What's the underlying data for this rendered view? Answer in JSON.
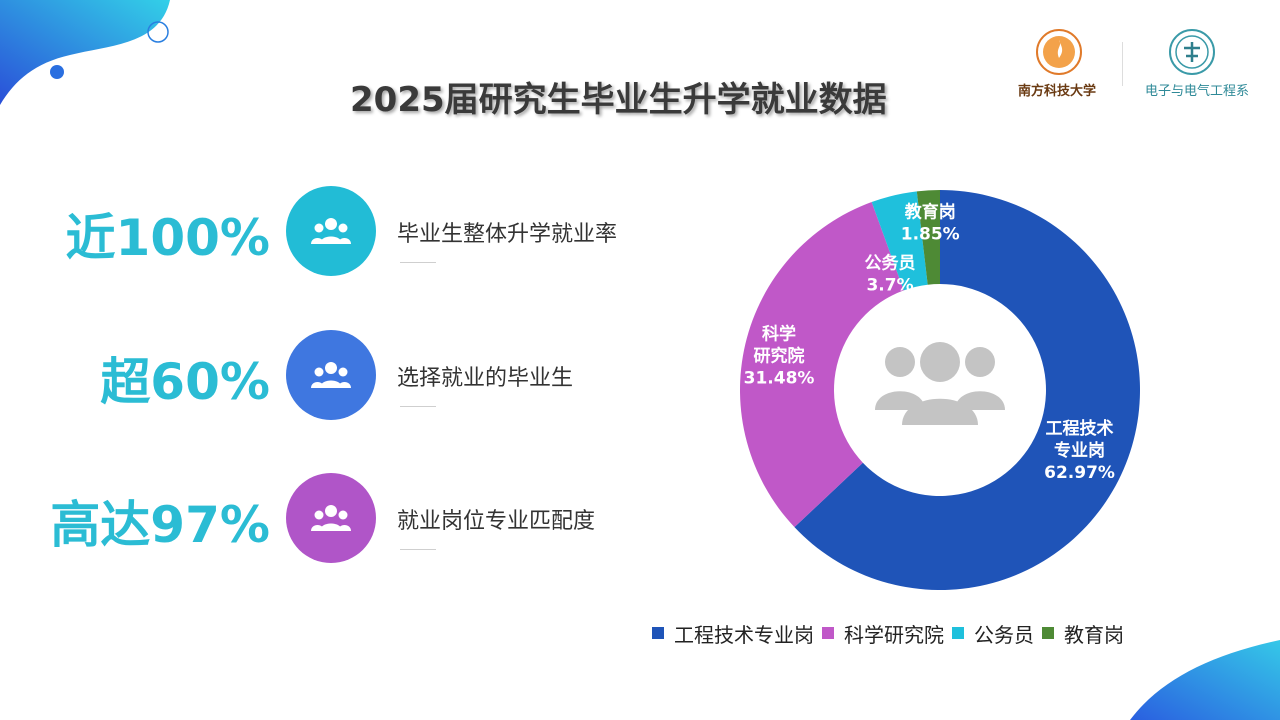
{
  "header": {
    "title": "2025届研究生毕业生升学就业数据",
    "logo_university": "南方科技大学",
    "logo_department": "电子与电气工程系"
  },
  "stats": [
    {
      "value": "近100%",
      "label": "毕业生整体升学就业率",
      "color": "#22bcd6",
      "icon": "people-icon"
    },
    {
      "value": "超60%",
      "label": "选择就业的毕业生",
      "color": "#3f77e0",
      "icon": "people-icon"
    },
    {
      "value": "高达97%",
      "label": "就业岗位专业匹配度",
      "color": "#b055c8",
      "icon": "people-icon"
    }
  ],
  "chart_data": {
    "type": "pie",
    "donut": true,
    "center_icon": "people-group-icon",
    "slices": [
      {
        "label": "工程技术专业岗",
        "value": 62.97,
        "display": "62.97%",
        "color": "#1f54b8"
      },
      {
        "label": "科学研究院",
        "value": 31.48,
        "display": "31.48%",
        "color": "#c058c8"
      },
      {
        "label": "公务员",
        "value": 3.7,
        "display": "3.7%",
        "color": "#1fc0dc"
      },
      {
        "label": "教育岗",
        "value": 1.85,
        "display": "1.85%",
        "color": "#4e8a35"
      }
    ],
    "slice_labels": [
      {
        "lines": [
          "工程技术",
          "专业岗",
          "62.97%"
        ]
      },
      {
        "lines": [
          "科学",
          "研究院",
          "31.48%"
        ]
      },
      {
        "lines": [
          "公务员",
          "3.7%"
        ]
      },
      {
        "lines": [
          "教育岗",
          "1.85%"
        ]
      }
    ],
    "legend": {
      "position": "bottom"
    }
  }
}
